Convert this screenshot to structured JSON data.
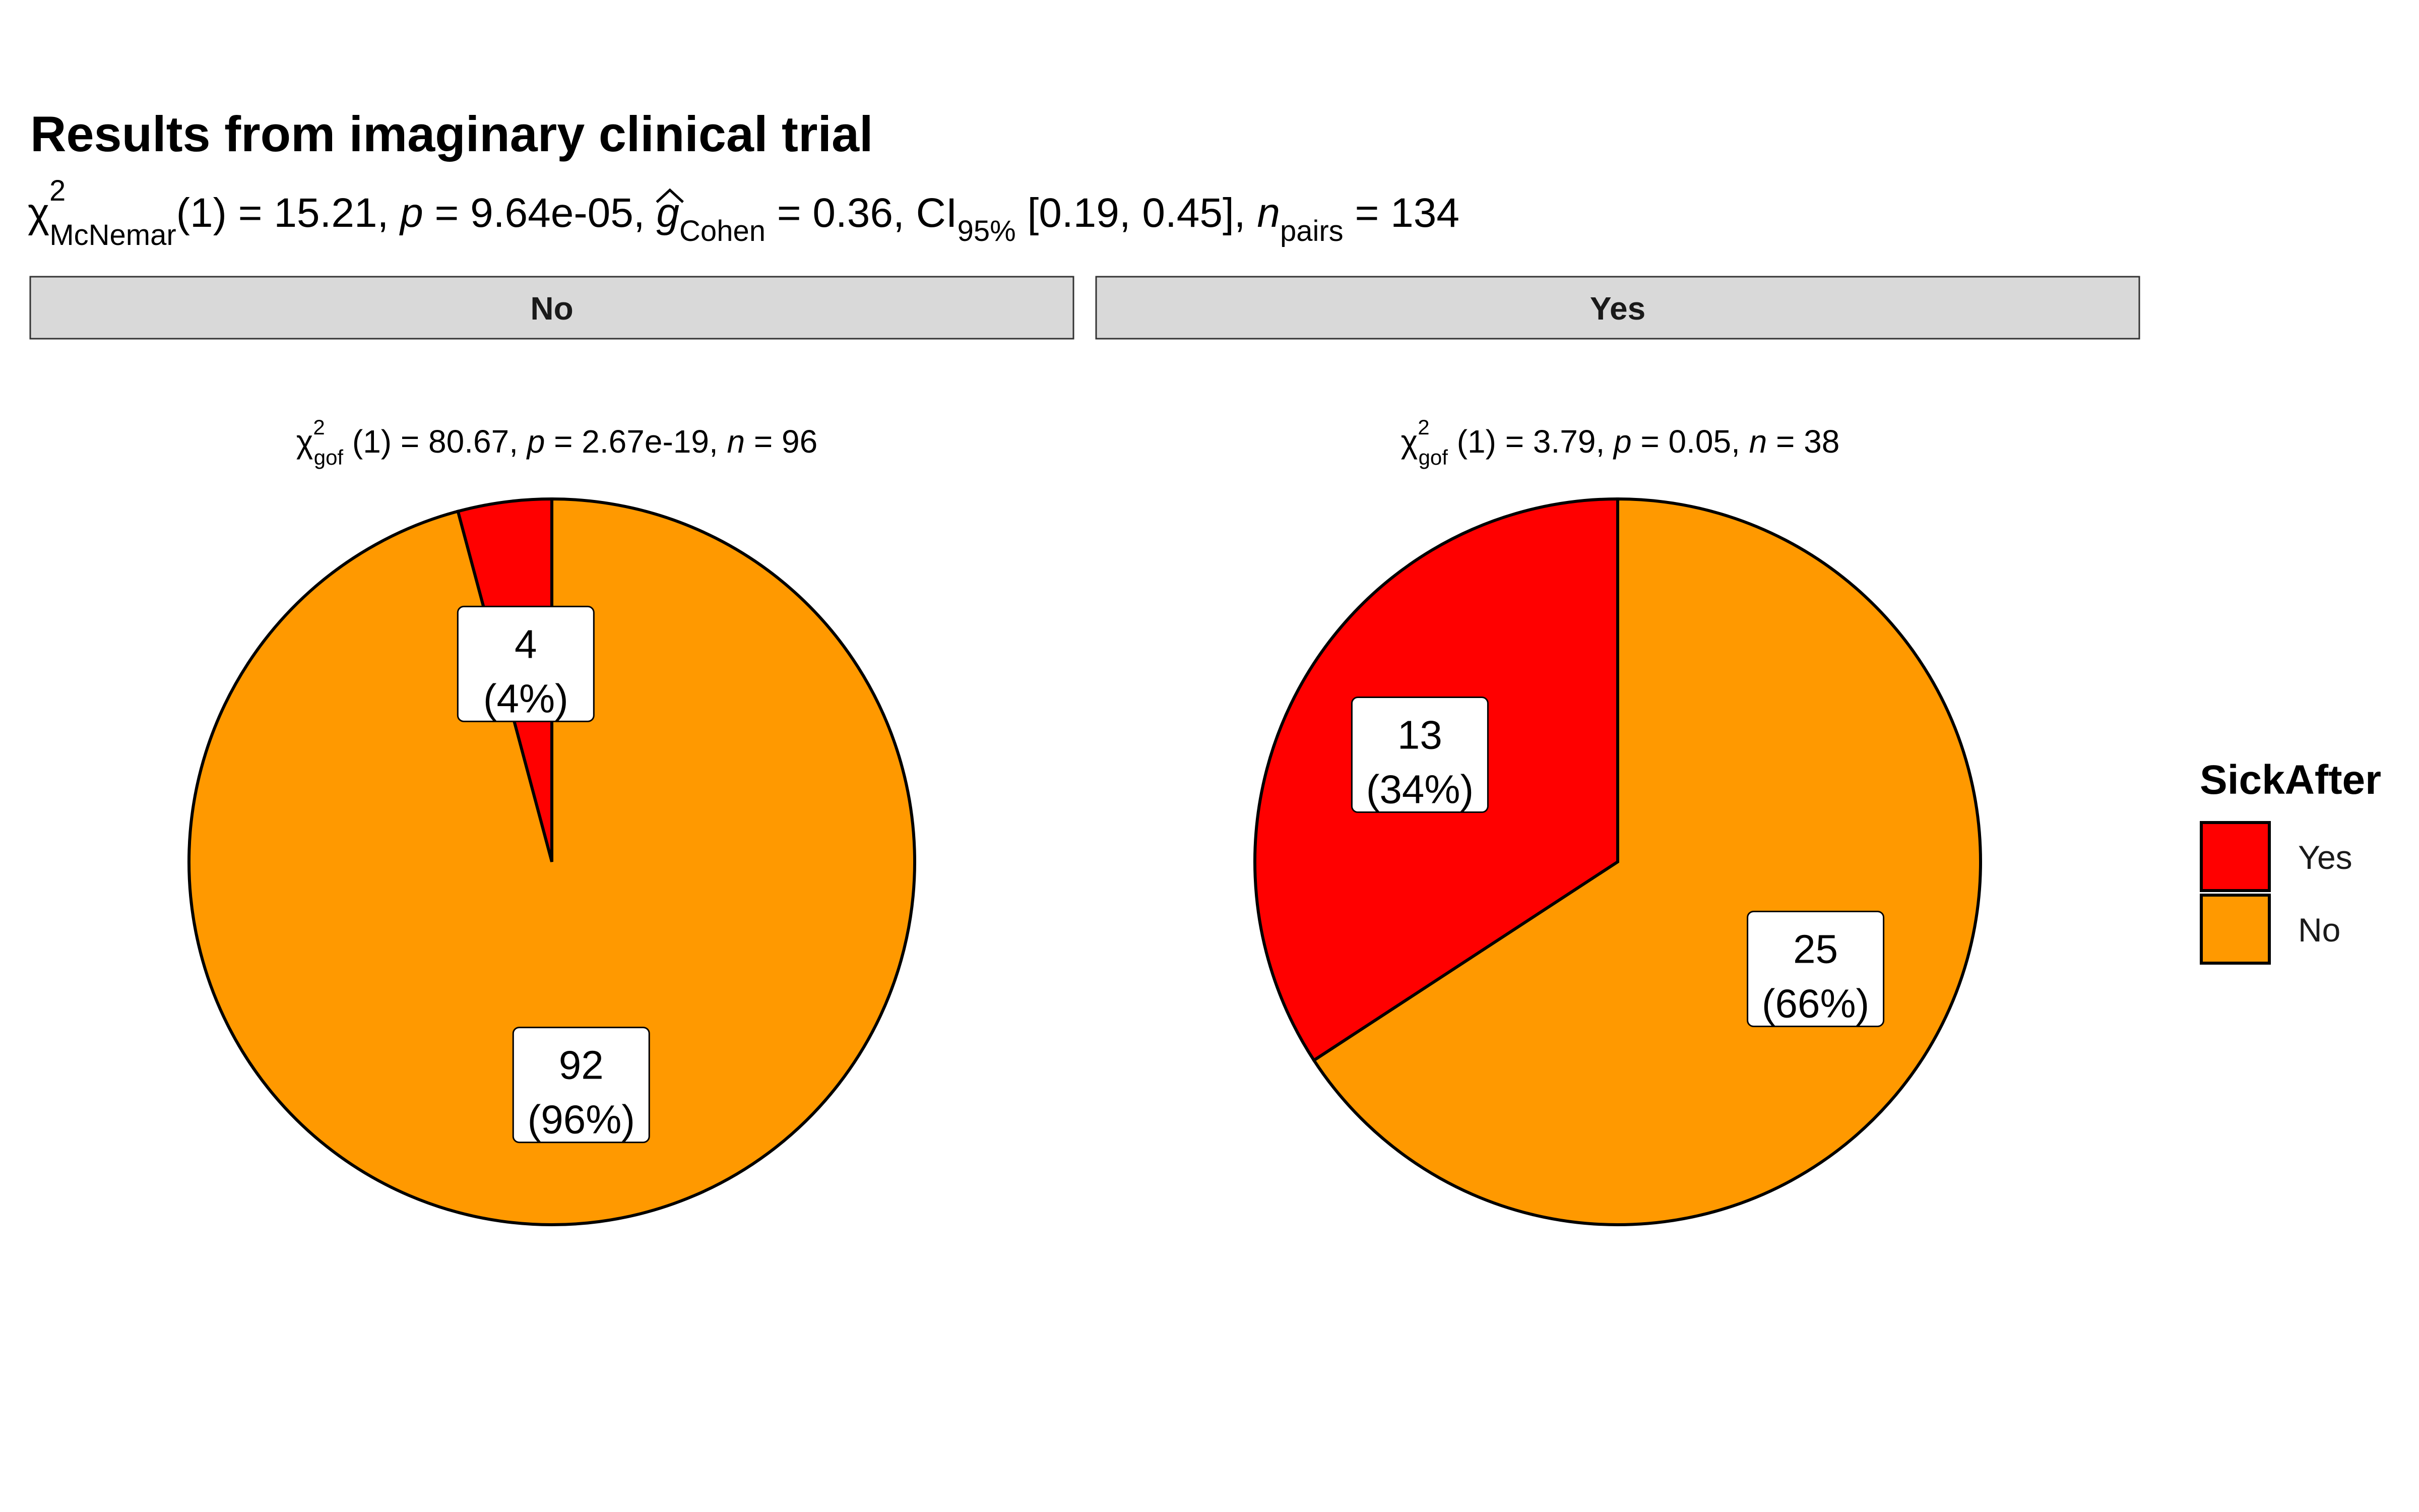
{
  "chart_data": {
    "type": "pie",
    "title": "Results from imaginary clinical trial",
    "subtitle": {
      "stat_symbol": "χ",
      "stat_sup": "2",
      "stat_sub": "McNemar",
      "df": "(1) = 15.21, ",
      "p_symbol": "p",
      "p_value": " = 9.64e-05, ",
      "effect_symbol": "g",
      "effect_sub": "Cohen",
      "effect_value": " = 0.36, CI",
      "ci_sub": "95%",
      "ci_value": " [0.19, 0.45], ",
      "n_symbol": "n",
      "n_sub": "pairs",
      "n_value": " = 134"
    },
    "legend": {
      "title": "SickAfter",
      "position": "right",
      "entries": [
        {
          "label": "Yes",
          "color": "#FF0000"
        },
        {
          "label": "No",
          "color": "#FF9900"
        }
      ]
    },
    "facets": [
      {
        "strip_label": "No",
        "stat": {
          "symbol": "χ",
          "sup": "2",
          "sub": "gof",
          "df": " (1)",
          "chi_value": " = 80.67,  ",
          "p_symbol": "p",
          "p_value": " = 2.67e-19,  ",
          "n_symbol": "n",
          "n_value": " = 96"
        },
        "slices": [
          {
            "category": "Yes",
            "count": 4,
            "percent": "(4%)",
            "color": "#FF0000"
          },
          {
            "category": "No",
            "count": 92,
            "percent": "(96%)",
            "color": "#FF9900"
          }
        ]
      },
      {
        "strip_label": "Yes",
        "stat": {
          "symbol": "χ",
          "sup": "2",
          "sub": "gof",
          "df": " (1)",
          "chi_value": " = 3.79,  ",
          "p_symbol": "p",
          "p_value": " = 0.05,  ",
          "n_symbol": "n",
          "n_value": " = 38"
        },
        "slices": [
          {
            "category": "Yes",
            "count": 13,
            "percent": "(34%)",
            "color": "#FF0000"
          },
          {
            "category": "No",
            "count": 25,
            "percent": "(66%)",
            "color": "#FF9900"
          }
        ]
      }
    ]
  }
}
